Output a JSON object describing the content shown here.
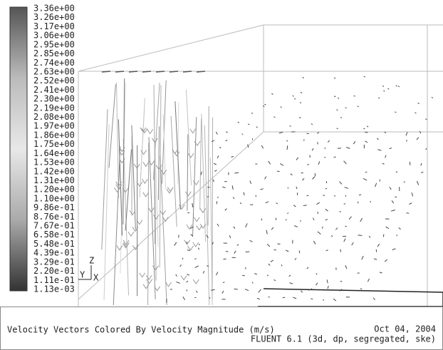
{
  "colorbar": {
    "labels": [
      "3.36e+00",
      "3.26e+00",
      "3.17e+00",
      "3.06e+00",
      "2.95e+00",
      "2.85e+00",
      "2.74e+00",
      "2.63e+00",
      "2.52e+00",
      "2.41e+00",
      "2.30e+00",
      "2.19e+00",
      "2.08e+00",
      "1.97e+00",
      "1.86e+00",
      "1.75e+00",
      "1.64e+00",
      "1.53e+00",
      "1.42e+00",
      "1.31e+00",
      "1.20e+00",
      "1.10e+00",
      "9.86e-01",
      "8.76e-01",
      "7.67e-01",
      "6.58e-01",
      "5.48e-01",
      "4.39e-01",
      "3.29e-01",
      "2.20e-01",
      "1.11e-01",
      "1.13e-03"
    ]
  },
  "axes": {
    "z": "Z",
    "y": "Y",
    "x": "X"
  },
  "footer": {
    "title": "Velocity Vectors Colored By Velocity Magnitude (m/s)",
    "date": "Oct 04, 2004",
    "software": "FLUENT 6.1 (3d, dp, segregated, ske)"
  }
}
